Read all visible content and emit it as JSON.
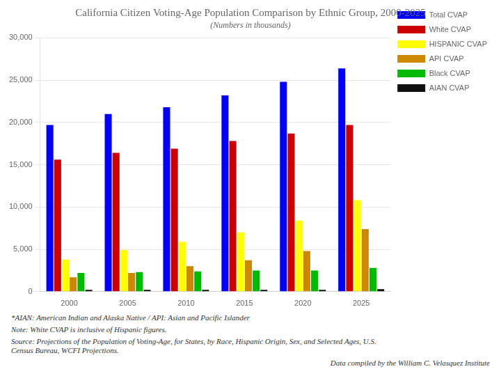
{
  "chart_data": {
    "type": "bar",
    "title": "California Citizen Voting-Age Population Comparison by Ethnic Group, 2000-2025",
    "subtitle": "(Numbers in thousands)",
    "categories": [
      "2000",
      "2005",
      "2010",
      "2015",
      "2020",
      "2025"
    ],
    "series": [
      {
        "name": "Total CVAP",
        "color": "#0000FF",
        "values": [
          19700,
          21000,
          21800,
          23200,
          24800,
          26400
        ]
      },
      {
        "name": "White CVAP",
        "color": "#CC0000",
        "values": [
          15600,
          16400,
          16900,
          17800,
          18700,
          19700
        ]
      },
      {
        "name": "HISPANIC CVAP",
        "color": "#FFFF00",
        "values": [
          3800,
          4900,
          5900,
          7000,
          8400,
          10800
        ]
      },
      {
        "name": "API CVAP",
        "color": "#CC8800",
        "values": [
          1700,
          2200,
          3000,
          3700,
          4800,
          7400
        ]
      },
      {
        "name": "Black CVAP",
        "color": "#00BB00",
        "values": [
          2200,
          2300,
          2400,
          2500,
          2500,
          2800
        ]
      },
      {
        "name": "AIAN CVAP",
        "color": "#111111",
        "values": [
          200,
          200,
          200,
          200,
          200,
          300
        ]
      }
    ],
    "ylim": [
      0,
      30000
    ],
    "yticks": [
      0,
      {
        "value": 5000,
        "label": "5,000"
      },
      {
        "value": 10000,
        "label": "10,000"
      },
      {
        "value": 15000,
        "label": "15,000"
      },
      {
        "value": 20000,
        "label": "20,000"
      },
      {
        "value": 25000,
        "label": "25,000"
      },
      {
        "value": 30000,
        "label": "30,000"
      }
    ],
    "grid": true,
    "legend": "right",
    "annotations": [
      "*AIAN: American Indian and Alaska Native / API: Asian and Pacific Islander",
      "Note:  White CVAP is inclusive of Hispanic figures.",
      "Source:   Projections of the Population of Voting-Age, for States, by  Race, Hispanic Origin, Sex, and Selected Ages, U.S.\nCensus Bureau, WCFI Projections.",
      "Data compiled by the William C. Velasquez Institute"
    ]
  }
}
